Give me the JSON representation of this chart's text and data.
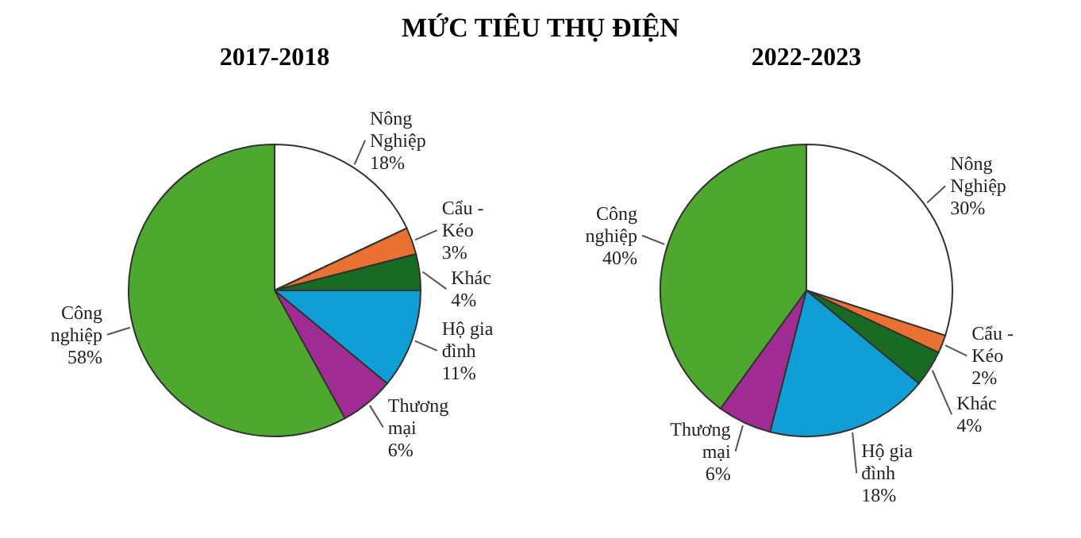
{
  "chart_data": [
    {
      "type": "other",
      "title": "MỨC TIÊU THỤ ĐIỆN"
    },
    {
      "type": "pie",
      "title": "2017-2018",
      "categories": [
        "Nông Nghiệp",
        "Cẩu - Kéo",
        "Khác",
        "Hộ gia đình",
        "Thương mại",
        "Công nghiệp"
      ],
      "values": [
        18,
        3,
        4,
        11,
        6,
        58
      ],
      "value_labels": [
        "18%",
        "3%",
        "4%",
        "11%",
        "6%",
        "58%"
      ],
      "colors": [
        "#ffffff",
        "#e97132",
        "#196b24",
        "#0f9ed5",
        "#a02b93",
        "#4ea72e"
      ]
    },
    {
      "type": "pie",
      "title": "2022-2023",
      "categories": [
        "Nông Nghiệp",
        "Cẩu - Kéo",
        "Khác",
        "Hộ gia đình",
        "Thương mại",
        "Công nghiệp"
      ],
      "values": [
        30,
        2,
        4,
        18,
        6,
        40
      ],
      "value_labels": [
        "30%",
        "2%",
        "4%",
        "18%",
        "6%",
        "40%"
      ],
      "colors": [
        "#ffffff",
        "#e97132",
        "#196b24",
        "#0f9ed5",
        "#a02b93",
        "#4ea72e"
      ]
    }
  ]
}
